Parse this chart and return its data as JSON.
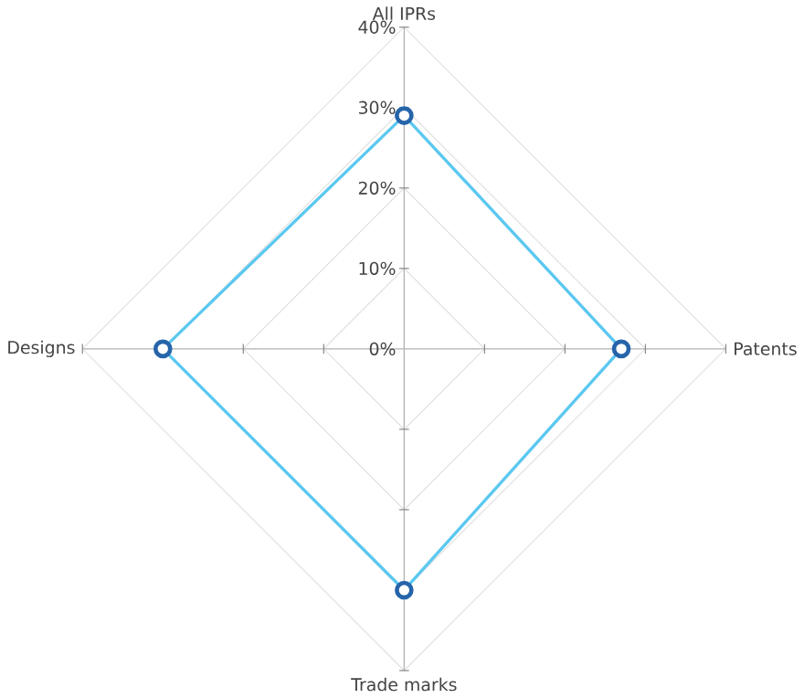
{
  "chart_data": {
    "type": "radar",
    "categories": [
      "All IPRs",
      "Patents",
      "Trade marks",
      "Designs"
    ],
    "series": [
      {
        "color": "#5bc8f0",
        "values": [
          29,
          27,
          30,
          30
        ]
      }
    ],
    "ylim": [
      0,
      40
    ],
    "yticks": [
      {
        "value": 0,
        "label": "0%"
      },
      {
        "value": 10,
        "label": "10%"
      },
      {
        "value": 20,
        "label": "20%"
      },
      {
        "value": 30,
        "label": "30%"
      },
      {
        "value": 40,
        "label": "40%"
      }
    ],
    "marker": "circle",
    "grid": true
  }
}
